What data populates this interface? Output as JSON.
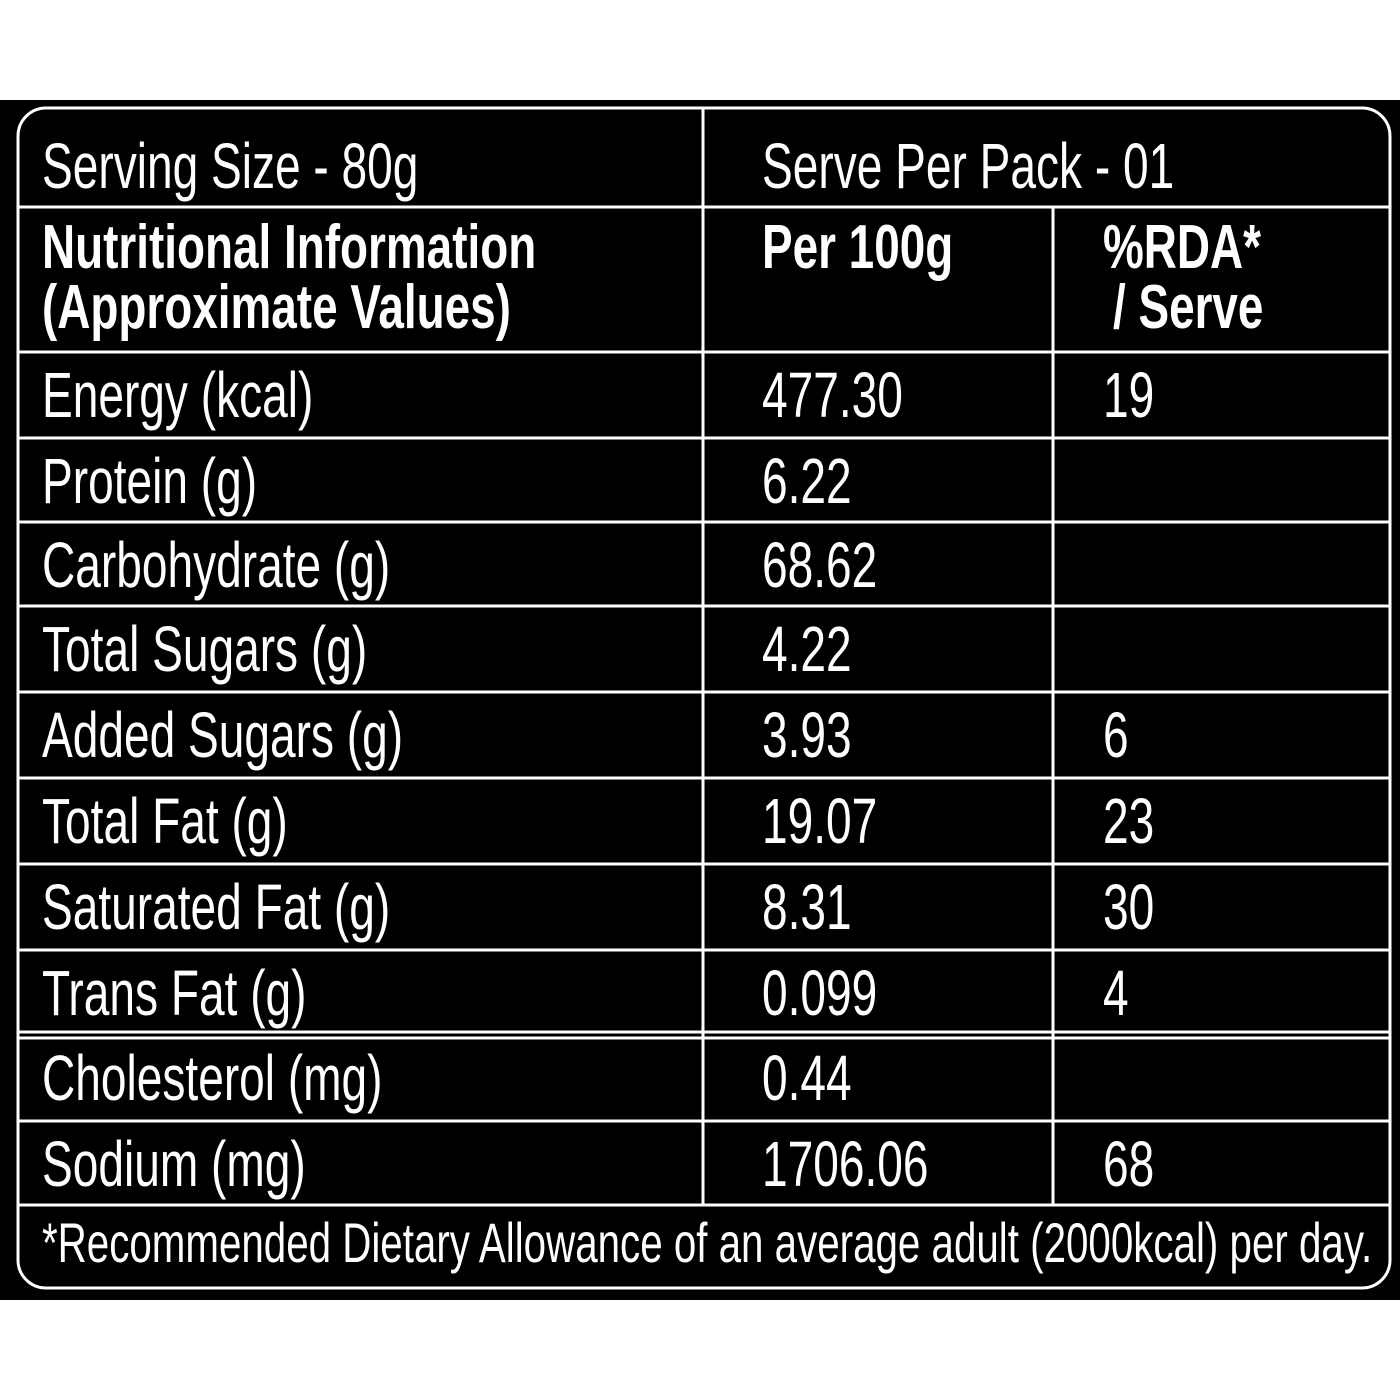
{
  "header": {
    "serving_size": "Serving Size - 80g",
    "serve_per_pack": "Serve Per Pack - 01"
  },
  "table": {
    "columns": [
      [
        "Nutritional Information",
        "(Approximate Values)"
      ],
      [
        "Per 100g"
      ],
      [
        "%RDA*",
        "/ Serve"
      ]
    ],
    "rows": [
      [
        "Energy (kcal)",
        "477.30",
        "19"
      ],
      [
        "Protein (g)",
        "6.22",
        null
      ],
      [
        "Carbohydrate (g)",
        "68.62",
        null
      ],
      [
        "Total Sugars (g)",
        "4.22",
        null
      ],
      [
        "Added Sugars (g)",
        "3.93",
        "6"
      ],
      [
        "Total Fat (g)",
        "19.07",
        "23"
      ],
      [
        "Saturated Fat (g)",
        "8.31",
        "30"
      ],
      [
        "Trans Fat (g)",
        "0.099",
        "4"
      ],
      [
        "Cholesterol (mg)",
        "0.44",
        null
      ],
      [
        "Sodium (mg)",
        "1706.06",
        "68"
      ]
    ]
  },
  "footnote": "*Recommended Dietary Allowance of an average adult (2000kcal) per day."
}
